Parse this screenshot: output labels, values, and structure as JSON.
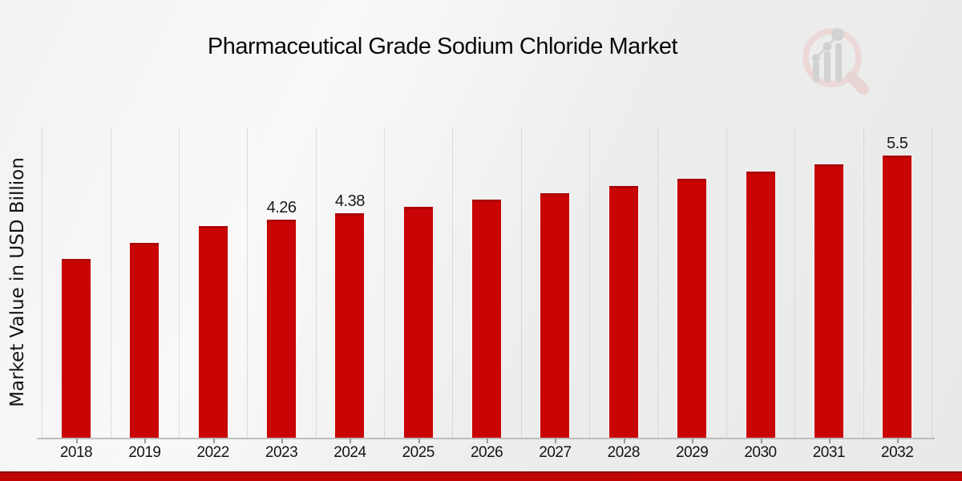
{
  "header": {
    "title": "Pharmaceutical Grade Sodium Chloride Market"
  },
  "chart_data": {
    "type": "bar",
    "title": "Pharmaceutical Grade Sodium Chloride Market",
    "xlabel": "",
    "ylabel": "Market Value in USD Billion",
    "categories": [
      "2018",
      "2019",
      "2022",
      "2023",
      "2024",
      "2025",
      "2026",
      "2027",
      "2028",
      "2029",
      "2030",
      "2031",
      "2032"
    ],
    "values": [
      3.5,
      3.8,
      4.13,
      4.26,
      4.38,
      4.51,
      4.64,
      4.77,
      4.91,
      5.05,
      5.19,
      5.34,
      5.5
    ],
    "bar_labels": [
      "",
      "",
      "",
      "4.26",
      "4.38",
      "",
      "",
      "",
      "",
      "",
      "",
      "",
      "5.5"
    ],
    "ylim": [
      0,
      6.05
    ],
    "grid": "vertical dotted lines at category boundaries",
    "legend": "none",
    "bar_color": "#c90404",
    "accent_color": "#c10404",
    "background_color": "#efefef"
  },
  "branding": {
    "logo_icon": "magnifier-bar-chart-logo"
  }
}
